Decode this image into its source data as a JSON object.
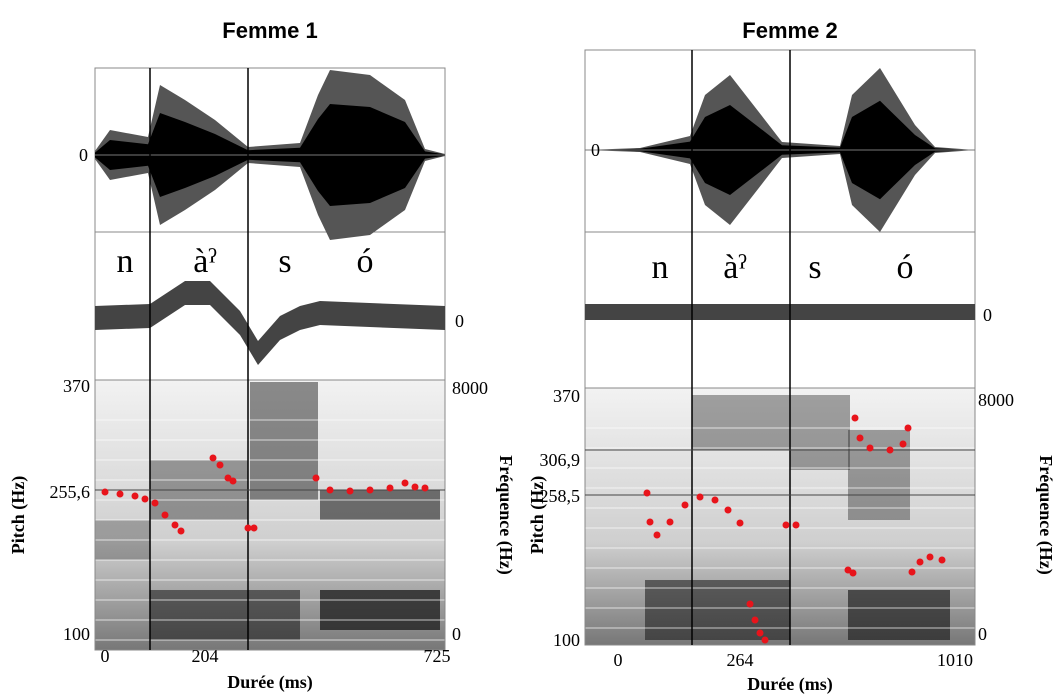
{
  "panels": [
    {
      "title": "Femme 1",
      "wave_zero": "0",
      "segments": [
        "n",
        "àˀ",
        "s",
        "ó"
      ],
      "osc_zero": "0",
      "pitch_axis_label": "Pitch (Hz)",
      "pitch_ticks": [
        "370",
        "255,6",
        "100"
      ],
      "freq_axis_label": "Fréquence (Hz)",
      "freq_ticks": [
        "8000",
        "0"
      ],
      "time_ticks": [
        "0",
        "204",
        "725"
      ],
      "time_axis_label": "Durée (ms)"
    },
    {
      "title": "Femme 2",
      "wave_zero": "0",
      "segments": [
        "n",
        "àˀ",
        "s",
        "ó"
      ],
      "osc_zero": "0",
      "pitch_axis_label": "Pitch (Hz)",
      "pitch_ticks": [
        "370",
        "306,9",
        "258,5",
        "100"
      ],
      "freq_axis_label": "Fréquence (Hz)",
      "freq_ticks": [
        "8000",
        "0"
      ],
      "time_ticks": [
        "0",
        "264",
        "1010"
      ],
      "time_axis_label": "Durée (ms)"
    }
  ]
}
